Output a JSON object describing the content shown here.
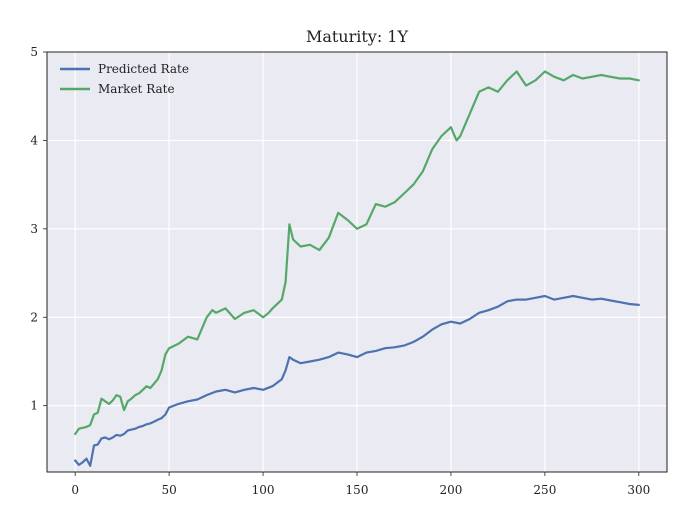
{
  "chart_data": {
    "type": "line",
    "title": "Maturity: 1Y",
    "xlabel": "",
    "ylabel": "",
    "xlim": [
      -15,
      315
    ],
    "ylim": [
      0.25,
      5.0
    ],
    "xticks": [
      0,
      50,
      100,
      150,
      200,
      250,
      300
    ],
    "yticks": [
      1,
      2,
      3,
      4,
      5
    ],
    "grid": true,
    "legend_position": "top-left",
    "background": "#eaeaf2",
    "series": [
      {
        "name": "Predicted Rate",
        "color": "#4c72b0",
        "x": [
          0,
          2,
          4,
          6,
          8,
          10,
          12,
          14,
          16,
          18,
          20,
          22,
          24,
          26,
          28,
          30,
          32,
          34,
          36,
          38,
          40,
          42,
          44,
          46,
          48,
          50,
          55,
          60,
          65,
          70,
          75,
          80,
          85,
          90,
          95,
          100,
          105,
          110,
          112,
          114,
          116,
          120,
          125,
          130,
          135,
          140,
          145,
          150,
          155,
          160,
          165,
          170,
          175,
          180,
          185,
          190,
          195,
          200,
          205,
          210,
          215,
          220,
          225,
          230,
          235,
          240,
          245,
          250,
          255,
          260,
          265,
          270,
          275,
          280,
          285,
          290,
          295,
          300
        ],
        "values": [
          0.38,
          0.33,
          0.36,
          0.4,
          0.32,
          0.55,
          0.56,
          0.63,
          0.64,
          0.62,
          0.64,
          0.67,
          0.66,
          0.68,
          0.72,
          0.73,
          0.74,
          0.76,
          0.77,
          0.79,
          0.8,
          0.82,
          0.84,
          0.86,
          0.9,
          0.98,
          1.02,
          1.05,
          1.07,
          1.12,
          1.16,
          1.18,
          1.15,
          1.18,
          1.2,
          1.18,
          1.22,
          1.3,
          1.4,
          1.55,
          1.52,
          1.48,
          1.5,
          1.52,
          1.55,
          1.6,
          1.58,
          1.55,
          1.6,
          1.62,
          1.65,
          1.66,
          1.68,
          1.72,
          1.78,
          1.86,
          1.92,
          1.95,
          1.93,
          1.98,
          2.05,
          2.08,
          2.12,
          2.18,
          2.2,
          2.2,
          2.22,
          2.24,
          2.2,
          2.22,
          2.24,
          2.22,
          2.2,
          2.21,
          2.19,
          2.17,
          2.15,
          2.14
        ]
      },
      {
        "name": "Market Rate",
        "color": "#55a868",
        "x": [
          0,
          2,
          4,
          6,
          8,
          10,
          12,
          14,
          16,
          18,
          20,
          22,
          24,
          26,
          28,
          30,
          32,
          34,
          36,
          38,
          40,
          42,
          44,
          46,
          48,
          50,
          55,
          60,
          65,
          70,
          73,
          75,
          80,
          85,
          90,
          95,
          100,
          103,
          105,
          110,
          112,
          114,
          116,
          120,
          125,
          130,
          135,
          140,
          145,
          150,
          155,
          160,
          165,
          170,
          175,
          180,
          185,
          190,
          195,
          200,
          203,
          205,
          210,
          215,
          220,
          225,
          230,
          235,
          240,
          245,
          250,
          255,
          260,
          265,
          270,
          275,
          280,
          285,
          290,
          295,
          300
        ],
        "values": [
          0.68,
          0.74,
          0.75,
          0.76,
          0.78,
          0.9,
          0.92,
          1.08,
          1.05,
          1.02,
          1.06,
          1.12,
          1.1,
          0.95,
          1.05,
          1.08,
          1.12,
          1.14,
          1.18,
          1.22,
          1.2,
          1.25,
          1.3,
          1.4,
          1.58,
          1.65,
          1.7,
          1.78,
          1.75,
          2.0,
          2.08,
          2.05,
          2.1,
          1.98,
          2.05,
          2.08,
          2.0,
          2.05,
          2.1,
          2.2,
          2.4,
          3.05,
          2.88,
          2.8,
          2.82,
          2.76,
          2.9,
          3.18,
          3.1,
          3.0,
          3.05,
          3.28,
          3.25,
          3.3,
          3.4,
          3.5,
          3.65,
          3.9,
          4.05,
          4.15,
          4.0,
          4.05,
          4.3,
          4.55,
          4.6,
          4.55,
          4.68,
          4.78,
          4.62,
          4.68,
          4.78,
          4.72,
          4.68,
          4.74,
          4.7,
          4.72,
          4.74,
          4.72,
          4.7,
          4.7,
          4.68
        ]
      }
    ]
  }
}
